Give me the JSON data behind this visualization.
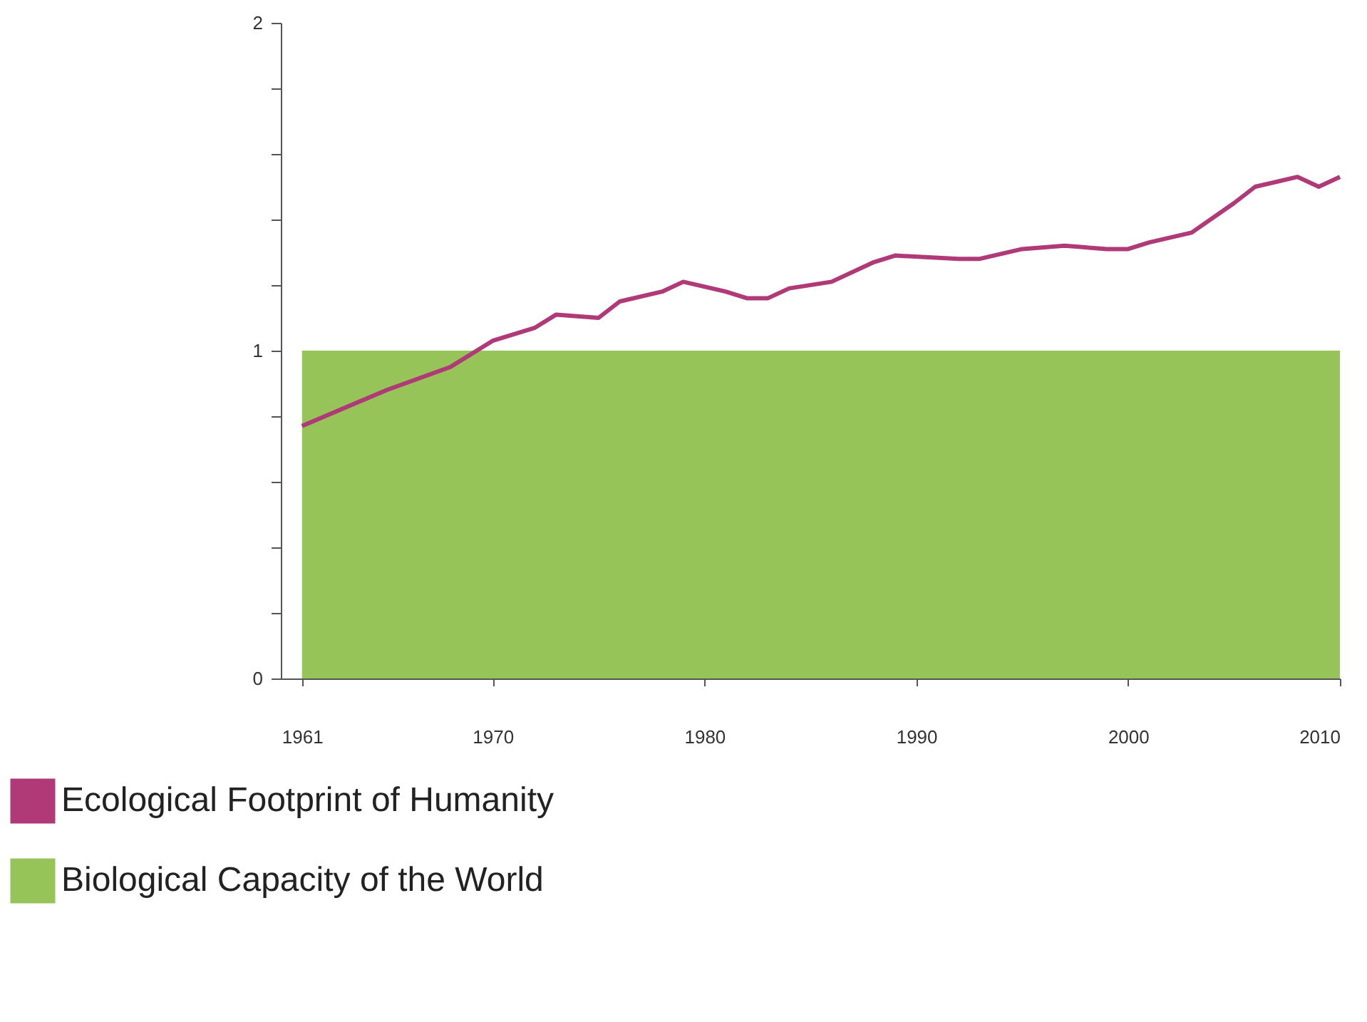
{
  "chart_data": {
    "type": "line",
    "xlim": [
      1960,
      2010
    ],
    "ylim": [
      0,
      2
    ],
    "xticks": [
      1961,
      1970,
      1980,
      1990,
      2000,
      2010
    ],
    "yticks": [
      0,
      {
        "value": 0.2,
        "label": null
      },
      {
        "value": 0.4,
        "label": null
      },
      {
        "value": 0.6,
        "label": null
      },
      {
        "value": 0.8,
        "label": null
      },
      1,
      {
        "value": 1.2,
        "label": null
      },
      {
        "value": 1.4,
        "label": null
      },
      {
        "value": 1.6,
        "label": null
      },
      {
        "value": 1.8,
        "label": null
      },
      2
    ],
    "grid": false,
    "legend": "bottom left",
    "marker": "none",
    "series": [
      {
        "name": "Ecological Footprint of Humanity",
        "color": "#b03a78",
        "x": [
          1961,
          1965,
          1968,
          1970,
          1972,
          1973,
          1975,
          1976,
          1978,
          1979,
          1981,
          1982,
          1983,
          1984,
          1986,
          1988,
          1989,
          1992,
          1993,
          1995,
          1997,
          1999,
          2000,
          2001,
          2003,
          2005,
          2006,
          2008,
          2009,
          2010
        ],
        "values": [
          0.77,
          0.88,
          0.95,
          1.03,
          1.07,
          1.11,
          1.1,
          1.15,
          1.18,
          1.21,
          1.18,
          1.16,
          1.16,
          1.19,
          1.21,
          1.27,
          1.29,
          1.28,
          1.28,
          1.31,
          1.32,
          1.31,
          1.31,
          1.33,
          1.36,
          1.45,
          1.5,
          1.53,
          1.5,
          1.53
        ]
      },
      {
        "name": "Biological Capacity of the World",
        "type": "area",
        "color": "#97c459",
        "x": [
          1961,
          2010
        ],
        "values": [
          1,
          1
        ]
      }
    ]
  }
}
